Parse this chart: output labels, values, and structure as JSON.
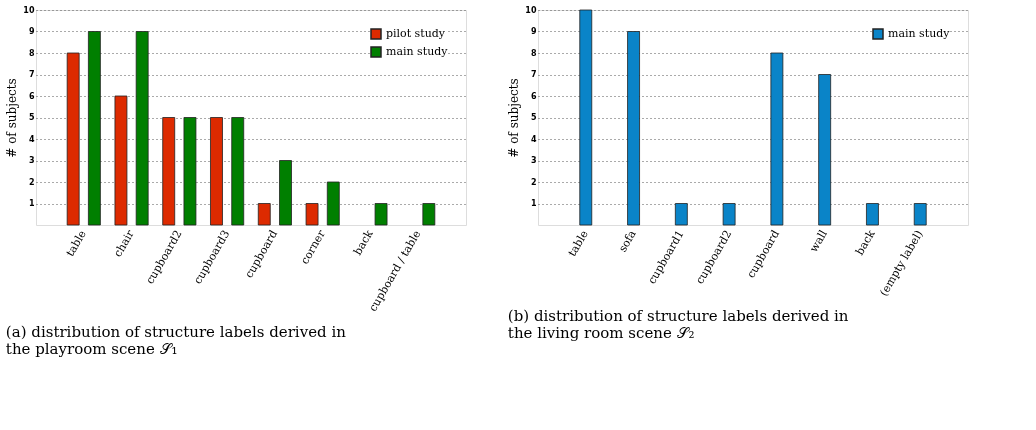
{
  "chart_data": [
    {
      "type": "bar",
      "ylabel": "# of subjects",
      "categories": [
        "table",
        "chair",
        "cupboard2",
        "cupboard3",
        "cupboard",
        "corner",
        "back",
        "cupboard / table"
      ],
      "series": [
        {
          "name": "pilot study",
          "color": "#dd2a00",
          "values": [
            8,
            6,
            5,
            5,
            1,
            1,
            null,
            null
          ]
        },
        {
          "name": "main study",
          "color": "#007f00",
          "values": [
            9,
            9,
            5,
            5,
            3,
            2,
            1,
            1
          ]
        }
      ],
      "ylim": [
        0,
        10
      ],
      "yticks": [
        1,
        2,
        3,
        4,
        5,
        6,
        7,
        8,
        9,
        10
      ],
      "grid": "y",
      "legend": "top right",
      "annotations": [
        "(a) distribution of structure labels derived in the playroom scene 𝒮₁"
      ]
    },
    {
      "type": "bar",
      "ylabel": "# of subjects",
      "categories": [
        "table",
        "sofa",
        "cupboard1",
        "cupboard2",
        "cupboard",
        "wall",
        "back",
        "(empty label)"
      ],
      "series": [
        {
          "name": "main study",
          "color": "#0a84c8",
          "values": [
            10,
            9,
            1,
            1,
            8,
            7,
            1,
            1
          ]
        }
      ],
      "ylim": [
        0,
        10
      ],
      "yticks": [
        1,
        2,
        3,
        4,
        5,
        6,
        7,
        8,
        9,
        10
      ],
      "grid": "y",
      "legend": "top right",
      "annotations": [
        "(b) distribution of structure labels derived in the living room scene 𝒮₂"
      ]
    }
  ]
}
